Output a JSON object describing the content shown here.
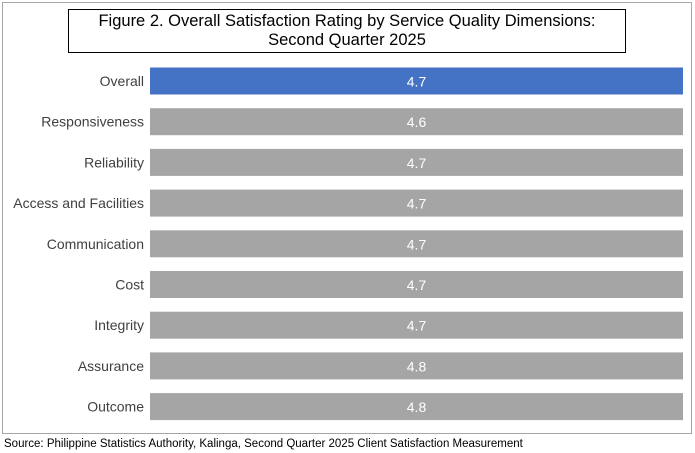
{
  "chart_data": {
    "type": "bar",
    "orientation": "horizontal",
    "title_lines": [
      "Figure 2. Overall Satisfaction Rating by Service Quality Dimensions:",
      "Second Quarter 2025"
    ],
    "categories": [
      "Overall",
      "Responsiveness",
      "Reliability",
      "Access and Facilities",
      "Communication",
      "Cost",
      "Integrity",
      "Assurance",
      "Outcome"
    ],
    "values": [
      4.7,
      4.6,
      4.7,
      4.7,
      4.7,
      4.7,
      4.7,
      4.8,
      4.8
    ],
    "value_labels": [
      "4.7",
      "4.6",
      "4.7",
      "4.7",
      "4.7",
      "4.7",
      "4.7",
      "4.8",
      "4.8"
    ],
    "highlight_category": "Overall",
    "colors": {
      "highlight": "#4472c4",
      "bar": "#a5a5a5",
      "value_label": "#ffffff"
    },
    "xlim": [
      0,
      4.8
    ],
    "grid": false,
    "legend": "none",
    "x_axis_visible": false
  },
  "source_note": "Source: Philippine Statistics Authority, Kalinga, Second Quarter 2025 Client Satisfaction Measurement"
}
